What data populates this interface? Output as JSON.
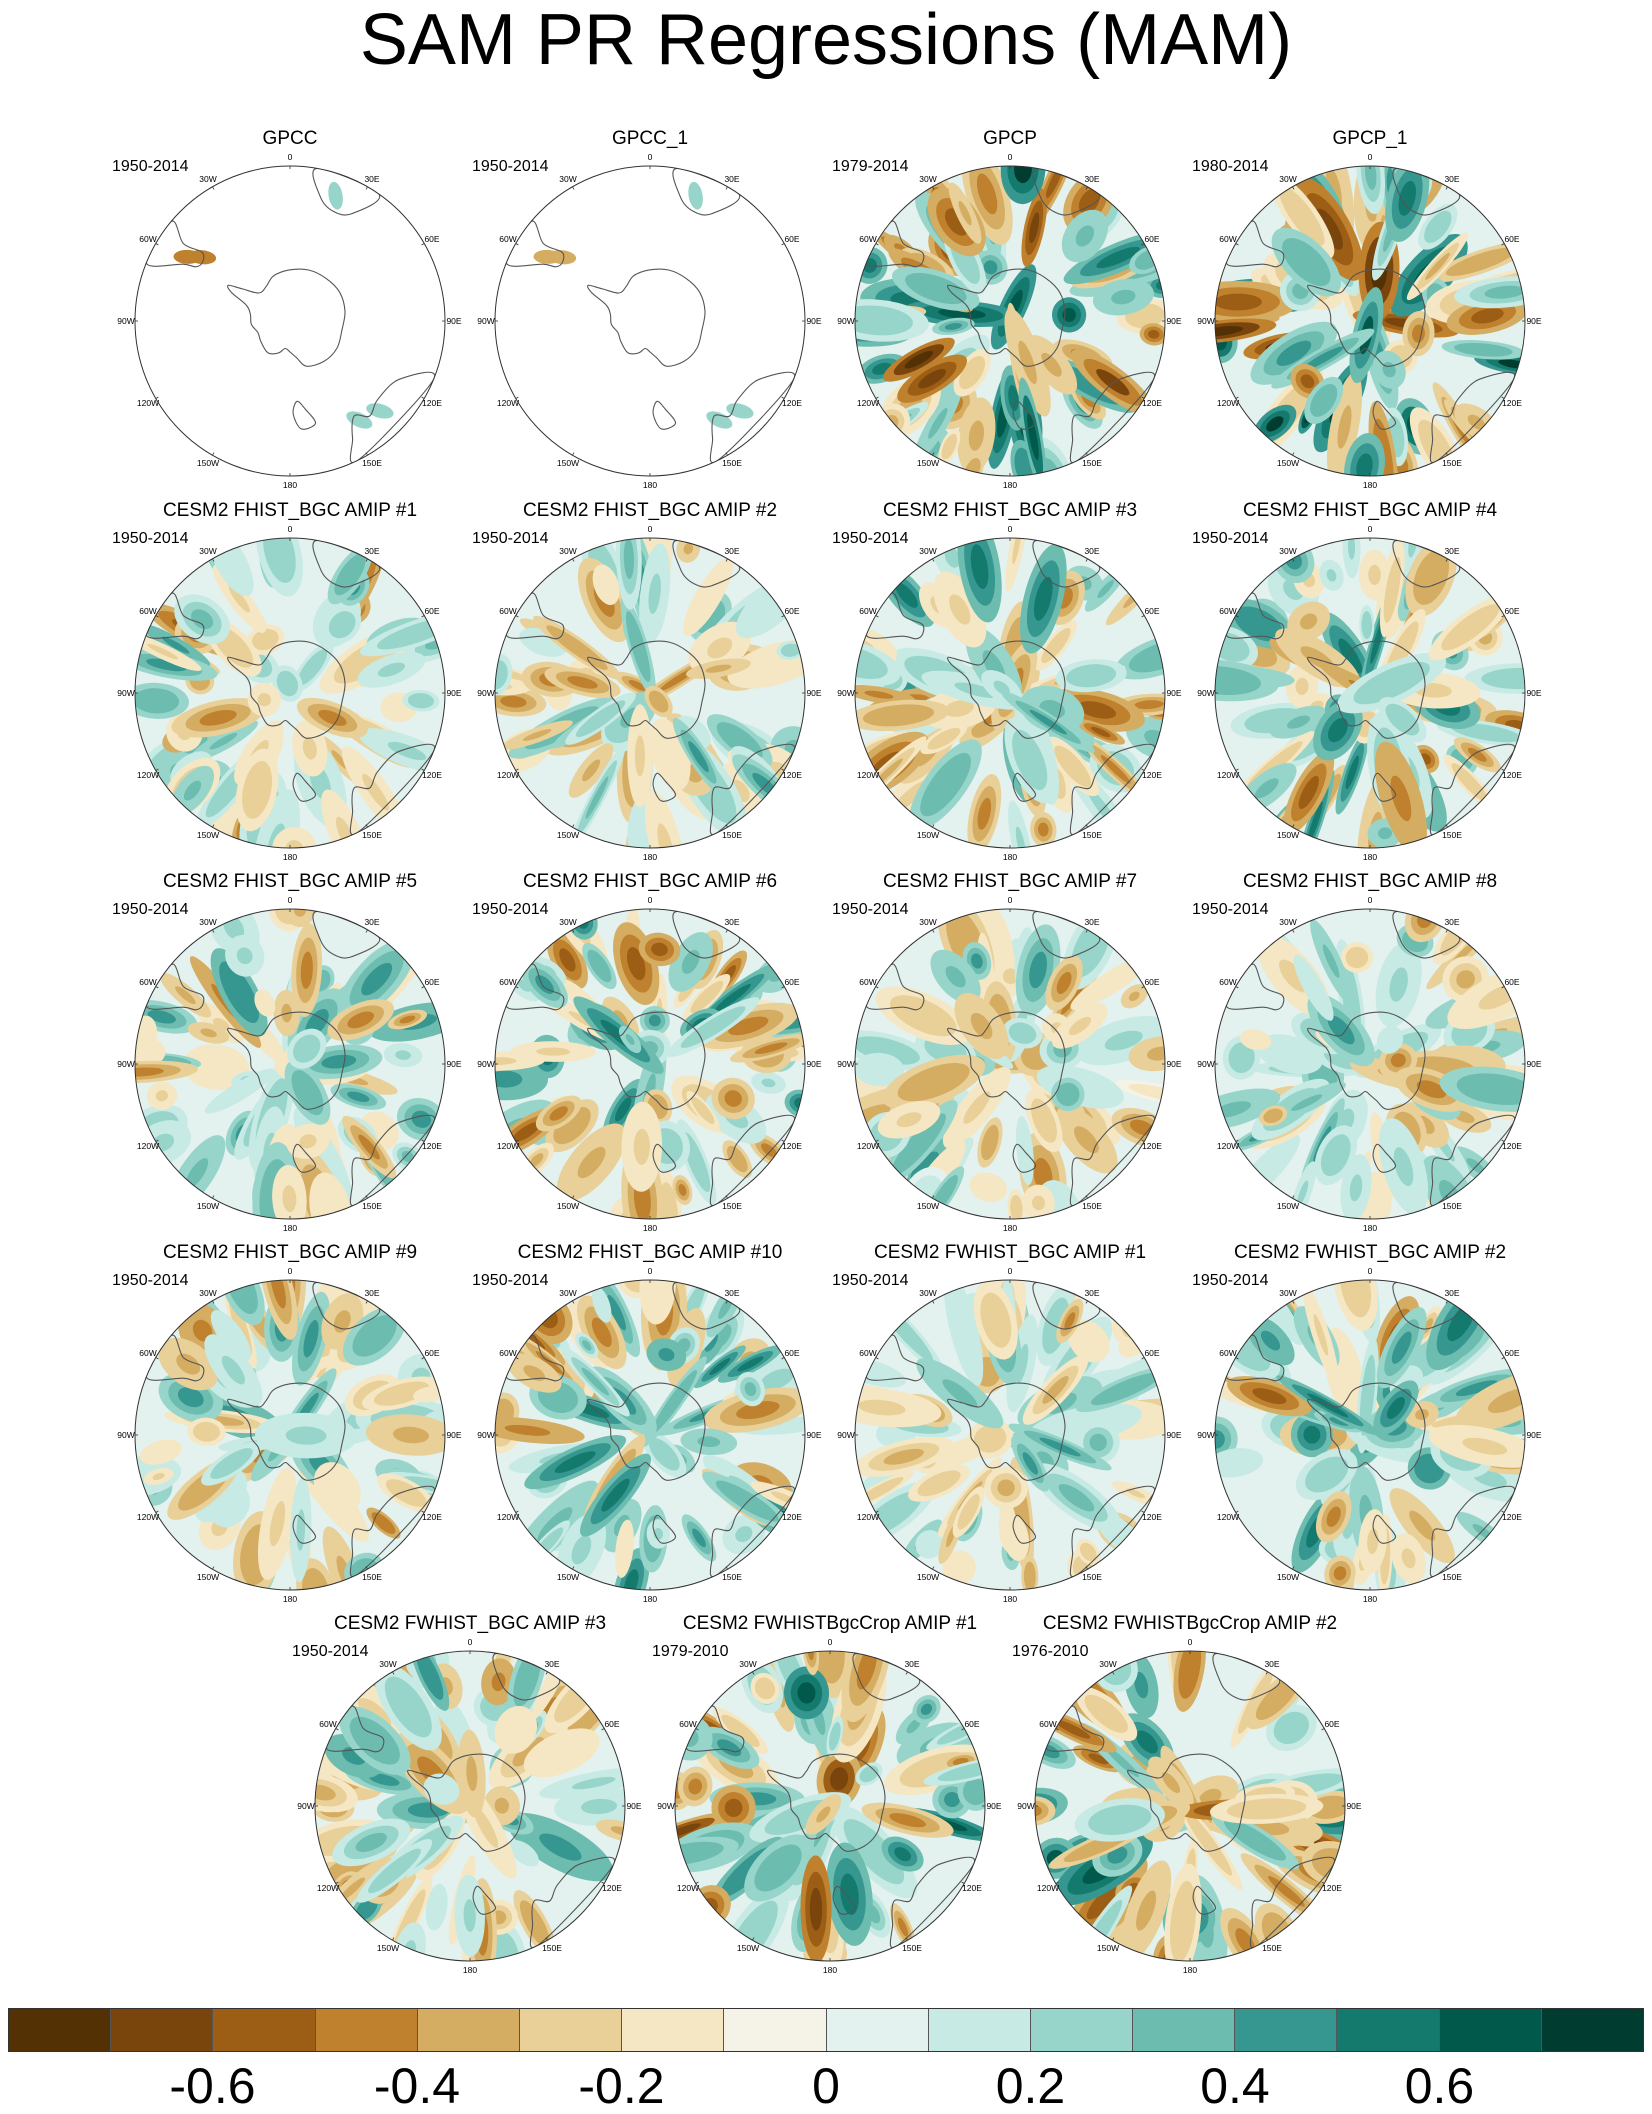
{
  "figure": {
    "title": "SAM PR Regressions (MAM)"
  },
  "longitude_labels": [
    "0",
    "30E",
    "60E",
    "90E",
    "120E",
    "150E",
    "180",
    "150W",
    "120W",
    "90W",
    "60W",
    "30W"
  ],
  "panels": [
    {
      "title": "GPCC",
      "period": "1950-2014",
      "coverage": "land-only",
      "amplitude": 0.3
    },
    {
      "title": "GPCC_1",
      "period": "1950-2014",
      "coverage": "land-only",
      "amplitude": 0.25
    },
    {
      "title": "GPCP",
      "period": "1979-2014",
      "coverage": "global",
      "amplitude": 0.75
    },
    {
      "title": "GPCP_1",
      "period": "1980-2014",
      "coverage": "global",
      "amplitude": 0.75
    },
    {
      "title": "CESM2 FHIST_BGC AMIP #1",
      "period": "1950-2014",
      "coverage": "global",
      "amplitude": 0.55
    },
    {
      "title": "CESM2 FHIST_BGC AMIP #2",
      "period": "1950-2014",
      "coverage": "global",
      "amplitude": 0.45
    },
    {
      "title": "CESM2 FHIST_BGC AMIP #3",
      "period": "1950-2014",
      "coverage": "global",
      "amplitude": 0.6
    },
    {
      "title": "CESM2 FHIST_BGC AMIP #4",
      "period": "1950-2014",
      "coverage": "global",
      "amplitude": 0.6
    },
    {
      "title": "CESM2 FHIST_BGC AMIP #5",
      "period": "1950-2014",
      "coverage": "global",
      "amplitude": 0.5
    },
    {
      "title": "CESM2 FHIST_BGC AMIP #6",
      "period": "1950-2014",
      "coverage": "global",
      "amplitude": 0.6
    },
    {
      "title": "CESM2 FHIST_BGC AMIP #7",
      "period": "1950-2014",
      "coverage": "global",
      "amplitude": 0.45
    },
    {
      "title": "CESM2 FHIST_BGC AMIP #8",
      "period": "1950-2014",
      "coverage": "global",
      "amplitude": 0.45
    },
    {
      "title": "CESM2 FHIST_BGC AMIP #9",
      "period": "1950-2014",
      "coverage": "global",
      "amplitude": 0.5
    },
    {
      "title": "CESM2 FHIST_BGC AMIP #10",
      "period": "1950-2014",
      "coverage": "global",
      "amplitude": 0.55
    },
    {
      "title": "CESM2 FWHIST_BGC AMIP #1",
      "period": "1950-2014",
      "coverage": "global",
      "amplitude": 0.45
    },
    {
      "title": "CESM2 FWHIST_BGC AMIP #2",
      "period": "1950-2014",
      "coverage": "global",
      "amplitude": 0.55
    },
    {
      "title": "CESM2 FWHIST_BGC AMIP #3",
      "period": "1950-2014",
      "coverage": "global",
      "amplitude": 0.5
    },
    {
      "title": "CESM2 FWHISTBgcCrop AMIP #1",
      "period": "1979-2010",
      "coverage": "global",
      "amplitude": 0.7
    },
    {
      "title": "CESM2 FWHISTBgcCrop AMIP #2",
      "period": "1976-2010",
      "coverage": "global",
      "amplitude": 0.7
    }
  ],
  "colorbar": {
    "colors": [
      "#543005",
      "#7a450d",
      "#9c5e15",
      "#bf812d",
      "#d5ad62",
      "#e8d098",
      "#f5e7c4",
      "#f5f2e8",
      "#e3f1ef",
      "#c7eae5",
      "#97d5cb",
      "#6cbcb0",
      "#35978f",
      "#147a6e",
      "#01594b",
      "#003c30"
    ],
    "bounds": [
      -0.7,
      -0.6,
      -0.5,
      -0.4,
      -0.3,
      -0.2,
      -0.1,
      0,
      0.1,
      0.2,
      0.3,
      0.4,
      0.5,
      0.6,
      0.7
    ],
    "tick_labels": [
      "-0.6",
      "-0.4",
      "-0.2",
      "0",
      "0.2",
      "0.4",
      "0.6"
    ]
  }
}
